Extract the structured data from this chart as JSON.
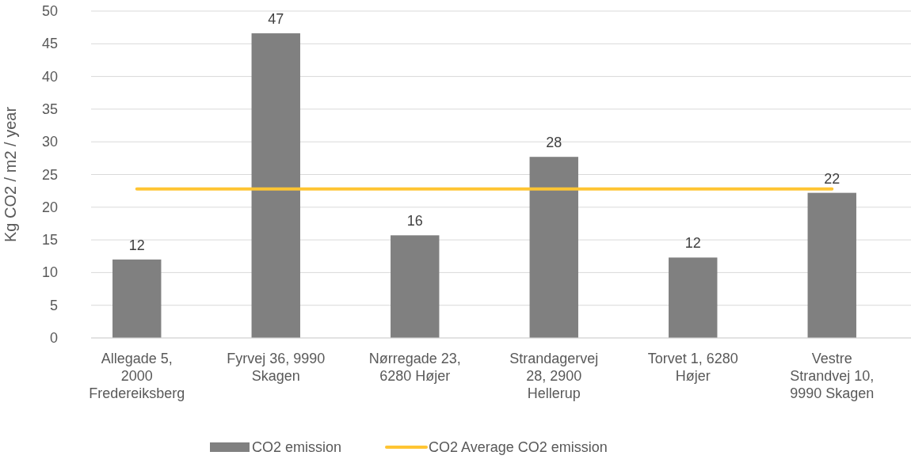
{
  "chart_data": {
    "type": "bar",
    "ylabel": "Kg CO2 / m2 / year",
    "categories": [
      "Allegade 5, 2000 Fredereiksberg",
      "Fyrvej 36, 9990 Skagen",
      "Nørregade 23, 6280 Højer",
      "Strandagervej 28, 2900 Hellerup",
      "Torvet 1, 6280 Højer",
      "Vestre Strandvej 10, 9990 Skagen"
    ],
    "series": [
      {
        "name": "CO2 emission",
        "color": "#808080",
        "values": [
          12.0,
          46.6,
          15.7,
          27.7,
          12.3,
          22.2
        ],
        "value_labels": [
          "12",
          "47",
          "16",
          "28",
          "12",
          "22"
        ]
      },
      {
        "name": "CO2 Average CO2 emission",
        "type": "line",
        "color": "#ffc533",
        "values": [
          22.8,
          22.8,
          22.8,
          22.8,
          22.8,
          22.8
        ]
      }
    ],
    "ylim": [
      0,
      50
    ],
    "yticks": [
      0,
      5,
      10,
      15,
      20,
      25,
      30,
      35,
      40,
      45,
      50
    ],
    "grid": "y",
    "legend": "bottom",
    "marker": "none",
    "line_style": "solid"
  }
}
